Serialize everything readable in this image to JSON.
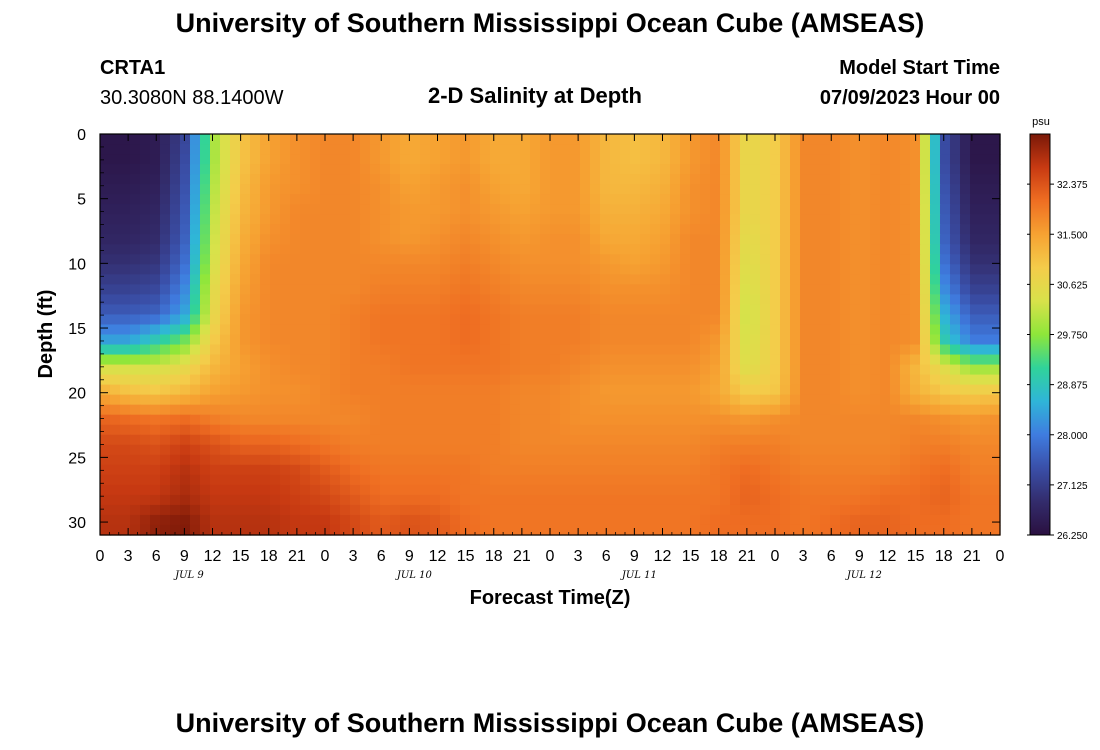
{
  "header": {
    "title": "University of Southern Mississippi Ocean Cube (AMSEAS)",
    "station": "CRTA1",
    "coordinates": "30.3080N  88.1400W",
    "plot_title": "2-D Salinity at Depth",
    "model_start_label": "Model Start Time",
    "model_start_value": "07/09/2023 Hour 00"
  },
  "footer": {
    "title": "University of Southern Mississippi Ocean Cube (AMSEAS)"
  },
  "chart_data": {
    "type": "heatmap",
    "title": "2-D Salinity at Depth",
    "xlabel": "Forecast Time(Z)",
    "ylabel": "Depth (ft)",
    "colorbar_unit": "psu",
    "x_ticks": [
      "0",
      "3",
      "6",
      "9",
      "12",
      "15",
      "18",
      "21",
      "0",
      "3",
      "6",
      "9",
      "12",
      "15",
      "18",
      "21",
      "0",
      "3",
      "6",
      "9",
      "12",
      "15",
      "18",
      "21",
      "0",
      "3",
      "6",
      "9",
      "12",
      "15",
      "18",
      "21",
      "0"
    ],
    "date_labels": [
      "JUL 9",
      "JUL 10",
      "JUL 11",
      "JUL 12"
    ],
    "y_ticks": [
      "0",
      "5",
      "10",
      "15",
      "20",
      "25",
      "30"
    ],
    "ylim": [
      0,
      31
    ],
    "xlim_hours": [
      0,
      96
    ],
    "colorbar": {
      "vmin": 26.25,
      "vmax": 33.25,
      "tick_labels": [
        "32.375",
        "31.500",
        "30.625",
        "29.750",
        "28.875",
        "28.000",
        "27.125",
        "26.250"
      ],
      "tick_values": [
        32.375,
        31.5,
        30.625,
        29.75,
        28.875,
        28.0,
        27.125,
        26.25
      ],
      "stops": [
        "#2a1040",
        "#332c6c",
        "#3a4fa8",
        "#3f7ce0",
        "#2fb5d8",
        "#30d39a",
        "#8ee63a",
        "#d8e24a",
        "#f4cc4a",
        "#f6a232",
        "#ef6e22",
        "#c83a12",
        "#7a1808"
      ]
    },
    "depth_levels_ft": [
      0,
      2,
      4,
      6,
      8,
      10,
      12,
      14,
      16,
      18,
      20,
      22,
      24,
      26,
      28,
      30,
      31
    ],
    "time_hours": [
      0,
      3,
      6,
      9,
      12,
      15,
      18,
      21,
      24,
      27,
      30,
      33,
      36,
      39,
      42,
      45,
      48,
      51,
      54,
      57,
      60,
      63,
      66,
      69,
      72,
      75,
      78,
      81,
      84,
      87,
      90,
      93,
      96
    ],
    "salinity_psu": [
      [
        26.4,
        26.4,
        26.5,
        27.2,
        29.9,
        31.0,
        31.5,
        31.7,
        31.8,
        31.8,
        31.6,
        31.4,
        31.5,
        31.6,
        31.4,
        31.4,
        31.6,
        31.6,
        31.2,
        31.1,
        31.2,
        31.6,
        31.8,
        30.6,
        30.9,
        31.8,
        31.8,
        31.7,
        31.8,
        31.7,
        27.4,
        26.4,
        26.4
      ],
      [
        26.4,
        26.4,
        26.5,
        27.3,
        29.9,
        31.0,
        31.5,
        31.7,
        31.8,
        31.8,
        31.6,
        31.4,
        31.5,
        31.6,
        31.4,
        31.4,
        31.6,
        31.6,
        31.2,
        31.1,
        31.2,
        31.6,
        31.8,
        30.6,
        30.9,
        31.8,
        31.8,
        31.7,
        31.8,
        31.7,
        27.4,
        26.4,
        26.4
      ],
      [
        26.5,
        26.5,
        26.6,
        27.4,
        30.0,
        31.1,
        31.6,
        31.7,
        31.8,
        31.8,
        31.7,
        31.5,
        31.6,
        31.7,
        31.5,
        31.4,
        31.6,
        31.6,
        31.2,
        31.2,
        31.3,
        31.7,
        31.8,
        30.6,
        30.9,
        31.8,
        31.8,
        31.7,
        31.8,
        31.7,
        27.5,
        26.5,
        26.5
      ],
      [
        26.6,
        26.6,
        26.7,
        27.5,
        30.1,
        31.2,
        31.6,
        31.8,
        31.8,
        31.8,
        31.7,
        31.6,
        31.6,
        31.7,
        31.6,
        31.5,
        31.6,
        31.6,
        31.3,
        31.3,
        31.4,
        31.7,
        31.8,
        30.6,
        30.9,
        31.8,
        31.8,
        31.7,
        31.8,
        31.7,
        27.6,
        26.6,
        26.6
      ],
      [
        26.7,
        26.7,
        26.8,
        27.6,
        30.2,
        31.3,
        31.7,
        31.8,
        31.8,
        31.8,
        31.7,
        31.6,
        31.7,
        31.8,
        31.7,
        31.6,
        31.7,
        31.7,
        31.4,
        31.4,
        31.5,
        31.8,
        31.8,
        30.5,
        30.9,
        31.8,
        31.8,
        31.7,
        31.8,
        31.7,
        27.7,
        26.7,
        26.7
      ],
      [
        26.9,
        26.9,
        27.0,
        27.8,
        30.3,
        31.4,
        31.8,
        31.8,
        31.8,
        31.8,
        31.8,
        31.8,
        31.8,
        31.9,
        31.8,
        31.7,
        31.7,
        31.7,
        31.6,
        31.5,
        31.6,
        31.8,
        31.8,
        30.4,
        30.9,
        31.8,
        31.8,
        31.7,
        31.8,
        31.7,
        27.9,
        26.9,
        26.9
      ],
      [
        27.2,
        27.2,
        27.3,
        28.1,
        30.5,
        31.5,
        31.8,
        31.8,
        31.8,
        31.8,
        31.9,
        31.9,
        31.9,
        32.0,
        31.9,
        31.8,
        31.8,
        31.8,
        31.7,
        31.7,
        31.7,
        31.8,
        31.8,
        30.3,
        30.9,
        31.8,
        31.8,
        31.7,
        31.8,
        31.7,
        28.2,
        27.2,
        27.2
      ],
      [
        27.6,
        27.6,
        27.7,
        28.4,
        30.6,
        31.6,
        31.8,
        31.8,
        31.8,
        31.9,
        32.0,
        32.0,
        32.0,
        32.1,
        32.0,
        31.9,
        31.9,
        31.9,
        31.8,
        31.8,
        31.8,
        31.8,
        31.8,
        30.2,
        30.9,
        31.8,
        31.8,
        31.7,
        31.8,
        31.7,
        28.6,
        27.6,
        27.6
      ],
      [
        28.4,
        28.4,
        29.0,
        29.6,
        30.9,
        31.6,
        31.8,
        31.8,
        31.8,
        31.9,
        32.0,
        32.0,
        32.0,
        32.1,
        32.0,
        31.9,
        31.9,
        31.9,
        31.8,
        31.8,
        31.8,
        31.8,
        31.6,
        30.3,
        30.9,
        31.8,
        31.8,
        31.7,
        31.8,
        31.7,
        29.0,
        28.0,
        28.0
      ],
      [
        30.3,
        30.3,
        30.3,
        30.6,
        31.2,
        31.5,
        31.7,
        31.8,
        31.8,
        31.9,
        31.9,
        32.0,
        32.0,
        32.0,
        32.0,
        31.9,
        31.9,
        31.8,
        31.7,
        31.7,
        31.7,
        31.7,
        31.5,
        30.4,
        30.9,
        31.8,
        31.8,
        31.7,
        31.8,
        31.2,
        30.5,
        29.8,
        29.9
      ],
      [
        31.4,
        31.1,
        31.0,
        31.2,
        31.5,
        31.6,
        31.7,
        31.7,
        31.8,
        31.9,
        31.9,
        31.9,
        31.9,
        31.9,
        31.9,
        31.8,
        31.8,
        31.7,
        31.6,
        31.6,
        31.6,
        31.6,
        31.4,
        30.9,
        31.0,
        31.8,
        31.8,
        31.7,
        31.8,
        31.3,
        31.0,
        30.9,
        31.0
      ],
      [
        32.2,
        32.1,
        32.0,
        32.1,
        31.9,
        31.8,
        31.8,
        31.8,
        31.8,
        31.8,
        31.9,
        31.9,
        31.9,
        31.9,
        31.9,
        31.8,
        31.8,
        31.7,
        31.7,
        31.7,
        31.7,
        31.7,
        31.7,
        31.6,
        31.7,
        31.8,
        31.8,
        31.8,
        31.8,
        31.8,
        31.7,
        31.6,
        31.7
      ],
      [
        32.5,
        32.5,
        32.4,
        32.6,
        32.4,
        32.2,
        32.2,
        32.1,
        32.0,
        31.9,
        31.9,
        31.9,
        31.9,
        31.9,
        31.9,
        31.8,
        31.8,
        31.8,
        31.8,
        31.8,
        31.8,
        31.8,
        31.9,
        31.9,
        31.9,
        31.8,
        31.8,
        31.8,
        31.8,
        31.9,
        31.9,
        31.8,
        31.8
      ],
      [
        32.6,
        32.6,
        32.6,
        32.8,
        32.6,
        32.6,
        32.6,
        32.5,
        32.3,
        32.1,
        32.0,
        32.0,
        32.0,
        32.0,
        31.9,
        31.9,
        31.9,
        31.9,
        31.9,
        31.9,
        31.9,
        31.9,
        32.0,
        32.1,
        32.0,
        31.9,
        31.9,
        31.9,
        31.9,
        32.0,
        32.1,
        31.9,
        31.9
      ],
      [
        32.7,
        32.7,
        32.7,
        32.9,
        32.7,
        32.7,
        32.7,
        32.6,
        32.5,
        32.3,
        32.1,
        32.1,
        32.1,
        32.0,
        32.0,
        32.0,
        32.0,
        32.0,
        32.0,
        32.0,
        32.0,
        32.0,
        32.0,
        32.2,
        32.1,
        32.0,
        32.0,
        32.0,
        32.1,
        32.1,
        32.2,
        32.0,
        32.0
      ],
      [
        32.8,
        32.8,
        33.1,
        33.2,
        32.8,
        32.8,
        32.8,
        32.7,
        32.7,
        32.5,
        32.3,
        32.4,
        32.3,
        32.1,
        32.0,
        32.0,
        32.0,
        32.0,
        32.0,
        32.0,
        32.0,
        32.0,
        32.1,
        32.1,
        32.1,
        32.0,
        32.1,
        32.2,
        32.2,
        32.1,
        32.1,
        32.0,
        32.0
      ],
      [
        32.8,
        32.8,
        33.1,
        33.2,
        32.8,
        32.8,
        32.8,
        32.7,
        32.7,
        32.5,
        32.3,
        32.4,
        32.3,
        32.1,
        32.0,
        32.0,
        32.0,
        32.0,
        32.0,
        32.0,
        32.0,
        32.0,
        32.1,
        32.1,
        32.1,
        32.0,
        32.1,
        32.2,
        32.2,
        32.1,
        32.1,
        32.0,
        32.0
      ]
    ]
  }
}
